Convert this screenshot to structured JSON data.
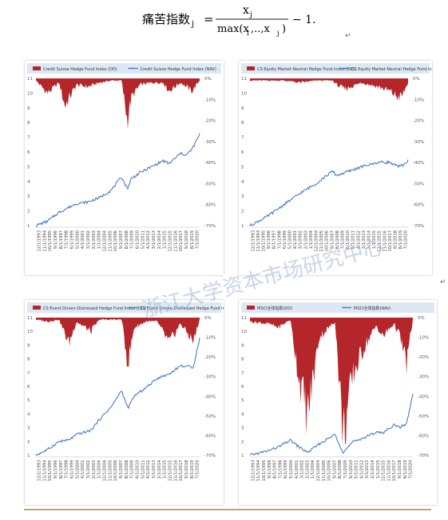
{
  "formula": {
    "lhs": "痛苦指数",
    "lhs_sub": "j",
    "num": "x",
    "num_sub": "j",
    "den": "max(x",
    "den_sub1": "1",
    "den_mid": ",..,x",
    "den_sub2": "j",
    "den_end": ")",
    "tail": "− 1."
  },
  "return_marks": [
    "↵",
    "↵",
    "↵"
  ],
  "watermark": "浙江大学资本市场研究中心",
  "colors": {
    "drawdown": "#b5262b",
    "nav": "#4a7dc0",
    "legend_bg": "#dce8f3"
  },
  "panels": [
    {
      "legend_dd": "Credit Suisse Hedge Fund Index (DD)",
      "legend_nav": "Credit Suisse Hedge Fund Index (NAV)",
      "left_ticks": [
        "11",
        "10",
        "9",
        "8",
        "7",
        "6",
        "5",
        "4",
        "3",
        "2",
        "1"
      ],
      "right_ticks": [
        "0%",
        "-10%",
        "-20%",
        "-30%",
        "-40%",
        "-50%",
        "-60%",
        "-70%"
      ],
      "x_labels": [
        "12/1/1993",
        "11/1/1994",
        "10/1/1995",
        "9/1/1996",
        "8/1/1997",
        "7/1/1998",
        "6/1/1999",
        "5/1/2000",
        "4/1/2001",
        "3/1/2002",
        "2/1/2003",
        "1/1/2004",
        "12/1/2004",
        "11/1/2005",
        "10/1/2006",
        "9/1/2007",
        "8/1/2008",
        "7/1/2009",
        "6/1/2010",
        "5/1/2011",
        "4/1/2012",
        "3/1/2013",
        "2/1/2014",
        "1/1/2015",
        "12/1/2015",
        "11/1/2016",
        "10/1/2017",
        "9/1/2018",
        "8/1/2019",
        "7/1/2020"
      ]
    },
    {
      "legend_dd": "CS Equity Market Neutral Hedge Fund Index (DD)",
      "legend_nav": "CS Equity Market Neutral Hedge Fund Index (NAV)",
      "left_ticks": [
        "11",
        "10",
        "9",
        "8",
        "7",
        "6",
        "5",
        "4",
        "3",
        "2",
        "1"
      ],
      "right_ticks": [
        "0%",
        "-10%",
        "-20%",
        "-30%",
        "-40%",
        "-50%",
        "-60%",
        "-70%"
      ],
      "x_labels": [
        "12/1/1993",
        "11/1/1994",
        "10/1/1995",
        "9/1/1996",
        "8/1/1997",
        "7/1/1998",
        "6/1/1999",
        "5/1/2000",
        "4/1/2001",
        "3/1/2002",
        "2/1/2003",
        "1/1/2004",
        "12/1/2004",
        "11/1/2005",
        "10/1/2006",
        "9/1/2007",
        "8/1/2008",
        "7/1/2009",
        "6/1/2010",
        "5/1/2011",
        "4/1/2012",
        "3/1/2013",
        "2/1/2014",
        "1/1/2015",
        "12/1/2015",
        "11/1/2016",
        "10/1/2017",
        "9/1/2018",
        "8/1/2019",
        "7/1/2020"
      ]
    },
    {
      "legend_dd": "CS Event Driven Distressed Hedge Fund Index (DD)",
      "legend_nav": "CS Event Driven Distressed Hedge Fund Index (NAV)",
      "left_ticks": [
        "11",
        "10",
        "9",
        "8",
        "7",
        "6",
        "5",
        "4",
        "3",
        "2",
        "1"
      ],
      "right_ticks": [
        "0%",
        "-10%",
        "-20%",
        "-30%",
        "-40%",
        "-50%",
        "-60%",
        "-70%"
      ],
      "x_labels": [
        "12/1/1993",
        "11/1/1994",
        "10/1/1995",
        "9/1/1996",
        "8/1/1997",
        "7/1/1998",
        "6/1/1999",
        "5/1/2000",
        "4/1/2001",
        "3/1/2002",
        "2/1/2003",
        "1/1/2004",
        "12/1/2004",
        "11/1/2005",
        "10/1/2006",
        "9/1/2007",
        "8/1/2008",
        "7/1/2009",
        "6/1/2010",
        "5/1/2011",
        "4/1/2012",
        "3/1/2013",
        "2/1/2014",
        "1/1/2015",
        "12/1/2015",
        "11/1/2016",
        "10/1/2017",
        "9/1/2018",
        "8/1/2019",
        "7/1/2020"
      ]
    },
    {
      "legend_dd": "MSCI全球指数(DD)",
      "legend_nav": "MSCI全球指数(NAV)",
      "left_ticks": [
        "11",
        "10",
        "9",
        "8",
        "7",
        "6",
        "5",
        "4",
        "3",
        "2",
        "1"
      ],
      "right_ticks": [
        "0%",
        "-10%",
        "-20%",
        "-30%",
        "-40%",
        "-50%",
        "-60%",
        "-70%"
      ],
      "x_labels": [
        "12/1/1993",
        "11/1/1994",
        "10/1/1995",
        "9/1/1996",
        "8/1/1997",
        "7/1/1998",
        "6/1/1999",
        "5/1/2000",
        "4/1/2001",
        "3/1/2002",
        "2/1/2003",
        "1/1/2004",
        "12/1/2004",
        "11/1/2005",
        "10/1/2006",
        "9/1/2007",
        "8/1/2008",
        "7/1/2009",
        "6/1/2010",
        "5/1/2011",
        "4/1/2012",
        "3/1/2013",
        "2/1/2014",
        "1/1/2015",
        "12/1/2015",
        "11/1/2016",
        "10/1/2017",
        "9/1/2018",
        "8/1/2019",
        "7/1/2020"
      ]
    }
  ],
  "chart_data": [
    {
      "type": "area",
      "legend": [
        "Credit Suisse Hedge Fund Index (DD)",
        "Credit Suisse Hedge Fund Index (NAV)"
      ],
      "x": [
        1993,
        1995,
        1997,
        1998,
        2000,
        2002,
        2004,
        2006,
        2007.8,
        2008.8,
        2009.5,
        2011,
        2013,
        2015,
        2016,
        2018,
        2019,
        2020,
        2021.3
      ],
      "series": [
        {
          "name": "Credit Suisse Hedge Fund Index (NAV)",
          "axis": "left",
          "ylim": [
            1,
            11
          ],
          "values": [
            1.0,
            1.3,
            1.9,
            2.1,
            2.5,
            2.6,
            2.9,
            3.4,
            4.3,
            3.5,
            4.2,
            4.6,
            5.0,
            5.4,
            5.2,
            5.9,
            5.8,
            6.2,
            7.2
          ]
        },
        {
          "name": "Credit Suisse Hedge Fund Index (DD)",
          "axis": "right",
          "ylim": [
            -0.7,
            0
          ],
          "values": [
            -0.01,
            -0.07,
            -0.02,
            -0.13,
            -0.03,
            -0.04,
            -0.02,
            -0.01,
            -0.01,
            -0.2,
            -0.09,
            -0.03,
            -0.02,
            -0.02,
            -0.06,
            -0.02,
            -0.04,
            -0.06,
            -0.01
          ]
        }
      ]
    },
    {
      "type": "area",
      "legend": [
        "CS Equity Market Neutral Hedge Fund Index (DD)",
        "CS Equity Market Neutral Hedge Fund Index (NAV)"
      ],
      "x": [
        1993,
        1996,
        1999,
        2002,
        2005,
        2007.8,
        2008.5,
        2010,
        2013,
        2016,
        2018,
        2019.5,
        2020.3,
        2021.3
      ],
      "series": [
        {
          "name": "CS Equity Market Neutral Hedge Fund Index (NAV)",
          "axis": "left",
          "ylim": [
            1,
            11
          ],
          "values": [
            1.0,
            1.6,
            2.4,
            3.2,
            3.9,
            4.7,
            4.4,
            4.6,
            5.0,
            5.3,
            5.3,
            5.0,
            5.1,
            5.4
          ]
        },
        {
          "name": "CS Equity Market Neutral Hedge Fund Index (DD)",
          "axis": "right",
          "ylim": [
            -0.7,
            0
          ],
          "values": [
            -0.01,
            -0.01,
            -0.01,
            -0.02,
            -0.01,
            -0.01,
            -0.03,
            -0.05,
            -0.02,
            -0.04,
            -0.06,
            -0.09,
            -0.08,
            -0.02
          ]
        }
      ]
    },
    {
      "type": "area",
      "legend": [
        "CS Event Driven Distressed Hedge Fund Index (DD)",
        "CS Event Driven Distressed Hedge Fund Index (NAV)"
      ],
      "x": [
        1993,
        1995,
        1997,
        1998.7,
        2000,
        2002.5,
        2004,
        2006,
        2007.8,
        2008.9,
        2010,
        2012,
        2014,
        2016,
        2018,
        2020.2,
        2021.3
      ],
      "series": [
        {
          "name": "CS Event Driven Distressed Hedge Fund Index (NAV)",
          "axis": "left",
          "ylim": [
            1,
            11
          ],
          "values": [
            1.0,
            1.4,
            2.0,
            2.1,
            2.5,
            2.8,
            3.6,
            4.5,
            5.7,
            4.4,
            5.3,
            5.9,
            6.6,
            6.9,
            7.5,
            7.4,
            9.5
          ]
        },
        {
          "name": "CS Event Driven Distressed Hedge Fund Index (DD)",
          "axis": "right",
          "ylim": [
            -0.7,
            0
          ],
          "values": [
            -0.01,
            -0.02,
            -0.01,
            -0.13,
            -0.02,
            -0.07,
            -0.01,
            -0.01,
            -0.01,
            -0.23,
            -0.05,
            -0.02,
            -0.02,
            -0.13,
            -0.03,
            -0.12,
            -0.01
          ]
        }
      ]
    },
    {
      "type": "area",
      "legend": [
        "MSCI全球指数(DD)",
        "MSCI全球指数(NAV)"
      ],
      "x": [
        1993,
        1996,
        1998,
        2000,
        2001.5,
        2003,
        2005,
        2007.8,
        2009.2,
        2011,
        2013,
        2015,
        2016,
        2018,
        2019,
        2020.2,
        2021.3
      ],
      "series": [
        {
          "name": "MSCI全球指数(NAV)",
          "axis": "left",
          "ylim": [
            1,
            11
          ],
          "values": [
            1.0,
            1.3,
            1.6,
            2.1,
            1.6,
            1.2,
            1.8,
            2.5,
            1.2,
            2.0,
            2.3,
            2.7,
            2.6,
            3.2,
            3.0,
            3.3,
            5.4
          ]
        },
        {
          "name": "MSCI全球指数(DD)",
          "axis": "right",
          "ylim": [
            -0.7,
            0
          ],
          "values": [
            -0.02,
            -0.03,
            -0.05,
            -0.01,
            -0.3,
            -0.5,
            -0.1,
            -0.02,
            -0.6,
            -0.28,
            -0.14,
            -0.04,
            -0.1,
            -0.03,
            -0.09,
            -0.23,
            -0.01
          ]
        }
      ]
    }
  ]
}
